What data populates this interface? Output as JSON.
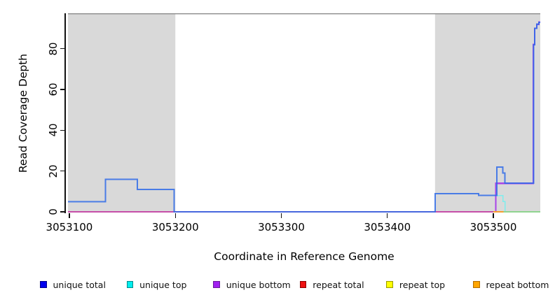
{
  "figure": {
    "xlabel": "Coordinate in Reference Genome",
    "ylabel": "Read Coverage Depth"
  },
  "chart_data": {
    "type": "line",
    "subtype": "step",
    "title": "",
    "xlabel": "Coordinate in Reference Genome",
    "ylabel": "Read Coverage Depth",
    "xlim": [
      3053098.7,
      3053544.3
    ],
    "ylim": [
      0,
      97.4
    ],
    "x_ticks": [
      3053100,
      3053200,
      3053300,
      3053400,
      3053500
    ],
    "y_ticks": [
      0,
      20,
      40,
      60,
      80
    ],
    "grid": false,
    "legend_position": "bottom",
    "background_color": "#FFFFFF",
    "shaded_region_color": "#D9D9D9",
    "plot_border_top_color": "#8A8A8A",
    "shaded_regions": [
      {
        "from": 3053098.7,
        "to": 3053200
      },
      {
        "from": 3053445,
        "to": 3053544.3
      }
    ],
    "series": [
      {
        "name": "unique top",
        "color": "#7DEDED",
        "width": 1.6,
        "opacity": 1,
        "points": [
          [
            3053098.7,
            0
          ],
          [
            3053502.5,
            0
          ],
          [
            3053502.5,
            8
          ],
          [
            3053509,
            8
          ],
          [
            3053509,
            5
          ],
          [
            3053511,
            5
          ],
          [
            3053511,
            0
          ],
          [
            3053544.3,
            0
          ]
        ]
      },
      {
        "name": "unique bottom",
        "color": "#A944E8",
        "width": 2.2,
        "opacity": 1,
        "points": [
          [
            3053098.7,
            0
          ],
          [
            3053502.3,
            0
          ],
          [
            3053502.3,
            14
          ],
          [
            3053537.6,
            14
          ],
          [
            3053537.6,
            82
          ],
          [
            3053539,
            82
          ],
          [
            3053539,
            90
          ],
          [
            3053541,
            90
          ],
          [
            3053541,
            92
          ],
          [
            3053543,
            92
          ],
          [
            3053543,
            93
          ],
          [
            3053544.3,
            93
          ]
        ]
      },
      {
        "name": "repeat total",
        "color": "#E25767",
        "width": 1.3,
        "opacity": 1,
        "points": [
          [
            3053098.7,
            0
          ],
          [
            3053501,
            0
          ]
        ]
      },
      {
        "name": "repeat bottom",
        "color": "#F79C2D",
        "width": 2.2,
        "opacity": 1,
        "points": [
          [
            3053500,
            0
          ],
          [
            3053509.5,
            0
          ]
        ]
      },
      {
        "name": "repeat top",
        "color": "#8FD48F",
        "width": 1.8,
        "opacity": 1,
        "points": [
          [
            3053509.5,
            0
          ],
          [
            3053544.3,
            0
          ]
        ]
      },
      {
        "name": "unique total",
        "color": "#2F6BE8",
        "width": 2,
        "opacity": 0.85,
        "points": [
          [
            3053098.7,
            5
          ],
          [
            3053134,
            5
          ],
          [
            3053134,
            16
          ],
          [
            3053164,
            16
          ],
          [
            3053164,
            11
          ],
          [
            3053199,
            11
          ],
          [
            3053199,
            0
          ],
          [
            3053445,
            0
          ],
          [
            3053445,
            9
          ],
          [
            3053486,
            9
          ],
          [
            3053486,
            8
          ],
          [
            3053503.3,
            8
          ],
          [
            3053503.3,
            22
          ],
          [
            3053509,
            22
          ],
          [
            3053509,
            19
          ],
          [
            3053511,
            19
          ],
          [
            3053511,
            14
          ],
          [
            3053538,
            14
          ],
          [
            3053538,
            82
          ],
          [
            3053539,
            82
          ],
          [
            3053539,
            90
          ],
          [
            3053541,
            90
          ],
          [
            3053541,
            92
          ],
          [
            3053543,
            92
          ],
          [
            3053543,
            93
          ],
          [
            3053544.3,
            93
          ]
        ]
      }
    ]
  },
  "legend": {
    "items": [
      {
        "label": "unique total",
        "color": "#0000EE",
        "border": "#00008B"
      },
      {
        "label": "unique top",
        "color": "#00EEEE",
        "border": "#008B8B"
      },
      {
        "label": "unique bottom",
        "color": "#A020F0",
        "border": "#6A1B9A"
      },
      {
        "label": "repeat total",
        "color": "#EE1111",
        "border": "#8B0000"
      },
      {
        "label": "repeat top",
        "color": "#FFFF00",
        "border": "#999900"
      },
      {
        "label": "repeat bottom",
        "color": "#FFA500",
        "border": "#B36B00"
      }
    ]
  }
}
